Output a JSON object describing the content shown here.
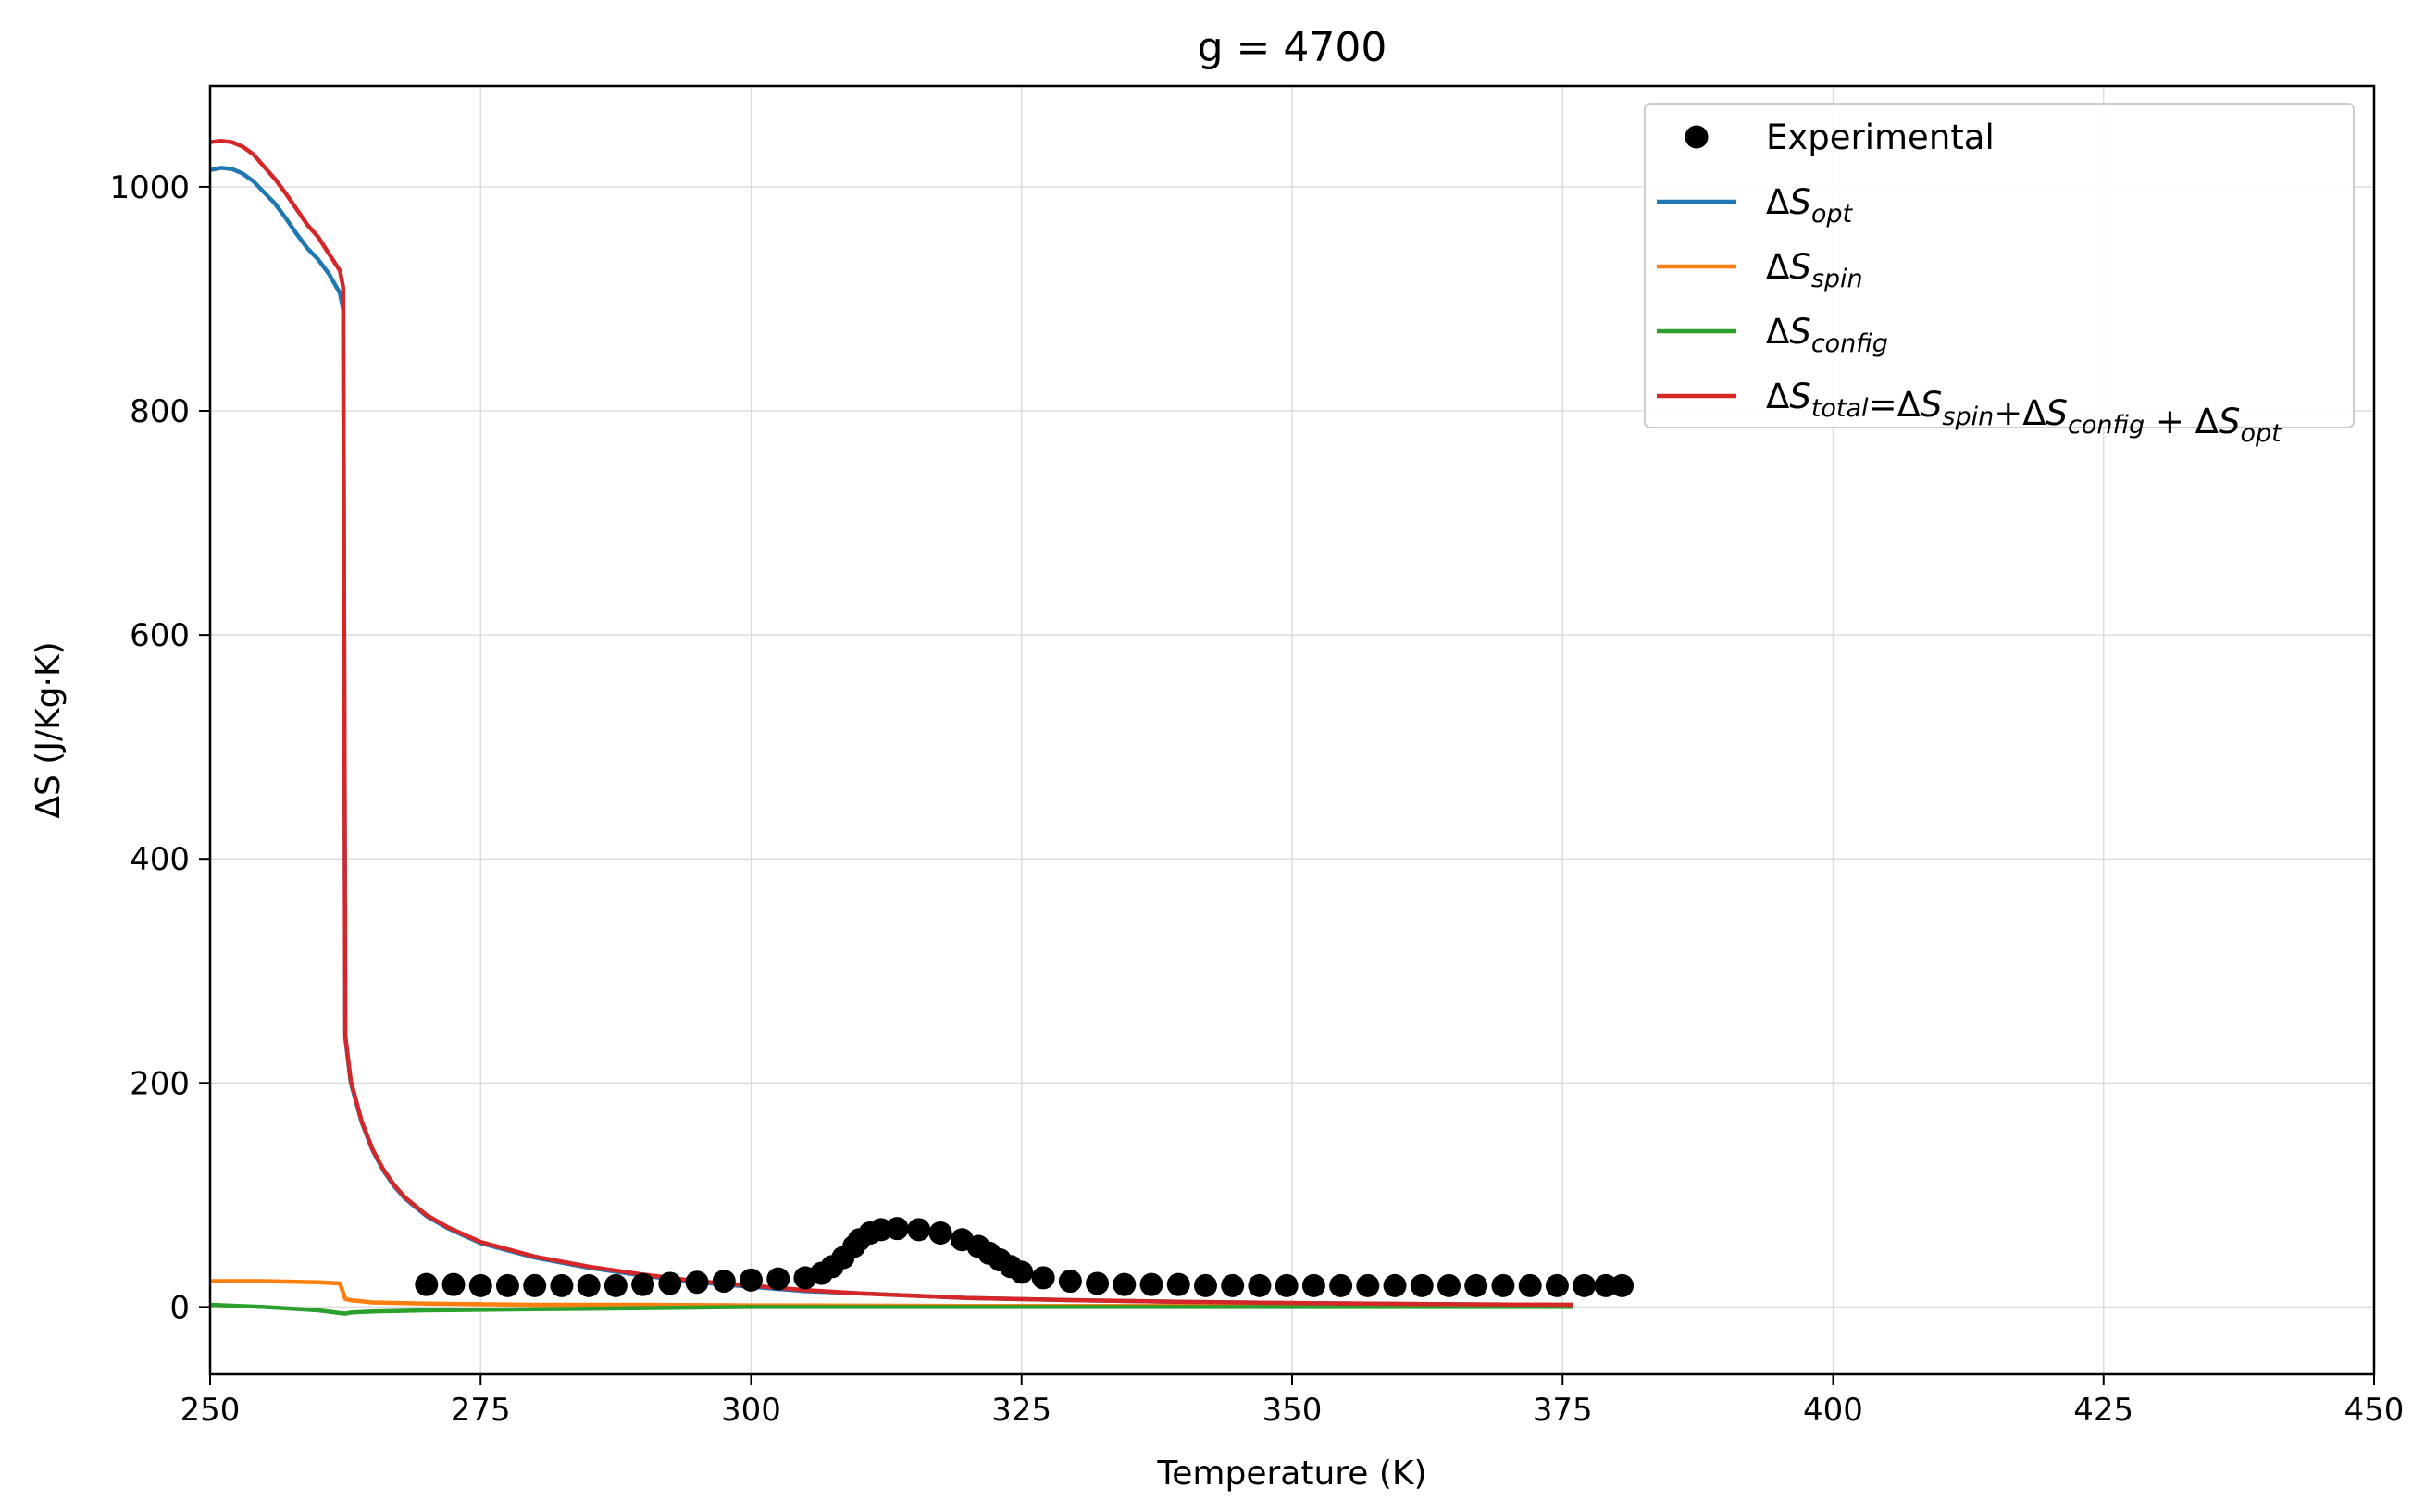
{
  "chart_data": {
    "type": "line",
    "title": "g = 4700",
    "xlabel": "Temperature (K)",
    "ylabel": "ΔS (J/Kg·K)",
    "xlim": [
      250,
      450
    ],
    "ylim": [
      -60,
      1090
    ],
    "xticks": [
      250,
      275,
      300,
      325,
      350,
      375,
      400,
      425,
      450
    ],
    "yticks": [
      0,
      200,
      400,
      600,
      800,
      1000
    ],
    "grid": true,
    "legend_position": "top-right",
    "colors": {
      "experimental": "#000000",
      "opt": "#1f77b4",
      "spin": "#ff7f0e",
      "config": "#2ca02c",
      "total": "#d62728"
    },
    "series": [
      {
        "key": "experimental",
        "name": "Experimental",
        "kind": "scatter",
        "x": [
          270.0,
          272.5,
          275.0,
          277.5,
          280.0,
          282.5,
          285.0,
          287.5,
          290.0,
          292.5,
          295.0,
          297.5,
          300.0,
          302.5,
          305.0,
          306.5,
          307.5,
          308.5,
          309.5,
          310.0,
          311.0,
          312.0,
          313.5,
          315.5,
          317.5,
          319.5,
          321.0,
          322.0,
          323.0,
          324.0,
          325.0,
          327.0,
          329.5,
          332.0,
          334.5,
          337.0,
          339.5,
          342.0,
          344.5,
          347.0,
          349.5,
          352.0,
          354.5,
          357.0,
          359.5,
          362.0,
          364.5,
          367.0,
          369.5,
          372.0,
          374.5,
          377.0,
          379.0,
          380.5
        ],
        "y": [
          20,
          20,
          19,
          19,
          19,
          19,
          19,
          19,
          20,
          21,
          22,
          23,
          24,
          25,
          26,
          30,
          36,
          44,
          54,
          60,
          66,
          69,
          70,
          69,
          66,
          60,
          54,
          48,
          42,
          36,
          31,
          26,
          23,
          21,
          20,
          20,
          20,
          19,
          19,
          19,
          19,
          19,
          19,
          19,
          19,
          19,
          19,
          19,
          19,
          19,
          19,
          19,
          19,
          19
        ]
      },
      {
        "key": "opt",
        "name_main": "ΔS",
        "name_sub": "opt",
        "kind": "line",
        "x": [
          250,
          251,
          252,
          253,
          254,
          255,
          256,
          257,
          258,
          259,
          260,
          261,
          262,
          262.3,
          262.5,
          263,
          264,
          265,
          266,
          267,
          268,
          270,
          272,
          275,
          280,
          285,
          290,
          295,
          300,
          305,
          310,
          315,
          320,
          330,
          340,
          350,
          360,
          370,
          376
        ],
        "y": [
          1015,
          1017,
          1016,
          1012,
          1005,
          995,
          985,
          972,
          958,
          945,
          935,
          922,
          905,
          890,
          240,
          200,
          165,
          140,
          122,
          108,
          97,
          81,
          70,
          57,
          44,
          35,
          28,
          22,
          18,
          14,
          12,
          10,
          8,
          6,
          4.5,
          3.5,
          2.8,
          2.2,
          2
        ]
      },
      {
        "key": "spin",
        "name_main": "ΔS",
        "name_sub": "spin",
        "kind": "line",
        "x": [
          250,
          255,
          260,
          262,
          262.5,
          263,
          265,
          270,
          280,
          290,
          300,
          320,
          340,
          360,
          376
        ],
        "y": [
          23,
          23,
          22,
          21,
          7,
          6,
          4,
          3,
          2,
          2,
          1.5,
          1,
          1,
          1,
          1
        ]
      },
      {
        "key": "config",
        "name_main": "ΔS",
        "name_sub": "config",
        "kind": "line",
        "x": [
          250,
          255,
          260,
          262.5,
          263,
          265,
          270,
          280,
          290,
          300,
          320,
          340,
          360,
          376
        ],
        "y": [
          2,
          0,
          -3,
          -6,
          -5,
          -4,
          -3,
          -2,
          -1,
          0,
          0,
          0,
          0,
          0
        ]
      },
      {
        "key": "total",
        "name_parts": [
          {
            "t": "ΔS",
            "s": "total"
          },
          {
            "t": "=ΔS",
            "s": "spin"
          },
          {
            "t": "+ΔS",
            "s": "config"
          },
          {
            "t": " + ΔS",
            "s": "opt"
          }
        ],
        "kind": "line",
        "x": [
          250,
          251,
          252,
          253,
          254,
          255,
          256,
          257,
          258,
          259,
          260,
          261,
          262,
          262.3,
          262.5,
          263,
          264,
          265,
          266,
          267,
          268,
          270,
          272,
          275,
          280,
          285,
          290,
          295,
          300,
          305,
          310,
          315,
          320,
          330,
          340,
          350,
          360,
          370,
          376
        ],
        "y": [
          1040,
          1041,
          1040,
          1036,
          1029,
          1018,
          1007,
          994,
          980,
          966,
          955,
          940,
          925,
          910,
          242,
          202,
          166,
          141,
          123,
          109,
          98,
          82,
          71,
          58,
          45,
          36,
          29,
          23,
          19,
          15,
          12,
          10,
          8,
          6,
          4.5,
          3.5,
          2.8,
          2.2,
          2
        ]
      }
    ],
    "legend": {
      "experimental_label": "Experimental"
    }
  }
}
